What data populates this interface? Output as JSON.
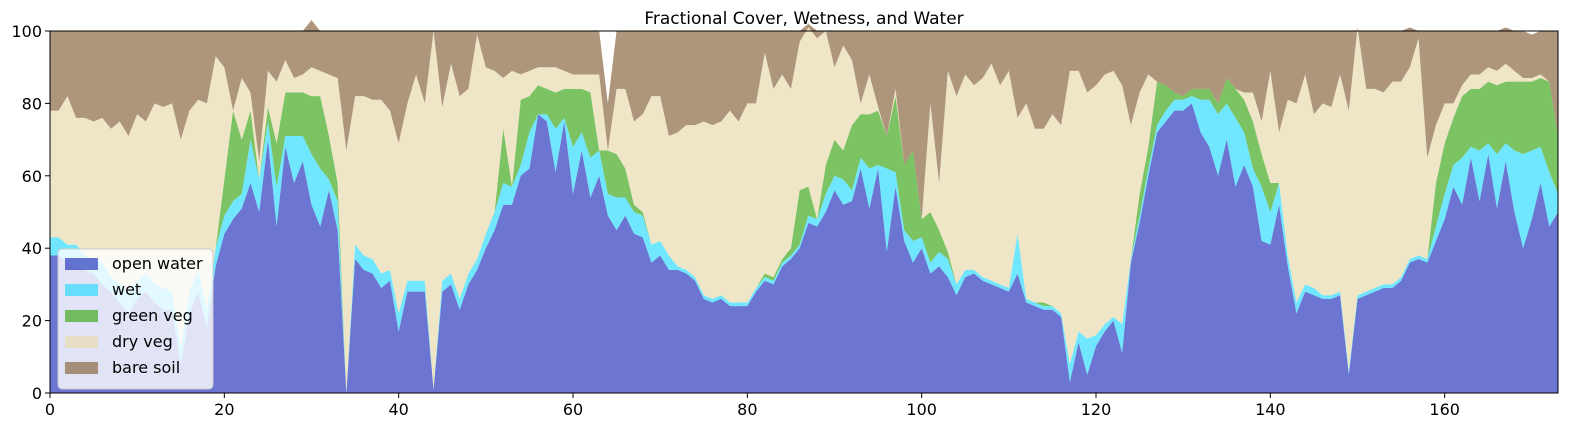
{
  "chart_data": {
    "type": "area",
    "stacked": true,
    "title": "Fractional Cover, Wetness, and Water",
    "xlabel": "",
    "ylabel": "",
    "xlim": [
      0,
      173
    ],
    "ylim": [
      0,
      100
    ],
    "xticks": [
      0,
      20,
      40,
      60,
      80,
      100,
      120,
      140,
      160
    ],
    "yticks": [
      0,
      20,
      40,
      60,
      80,
      100
    ],
    "grid": false,
    "legend_position": "lower-left",
    "x": [
      0,
      1,
      2,
      3,
      4,
      5,
      6,
      7,
      8,
      9,
      10,
      11,
      12,
      13,
      14,
      15,
      16,
      17,
      18,
      19,
      20,
      21,
      22,
      23,
      24,
      25,
      26,
      27,
      28,
      29,
      30,
      31,
      32,
      33,
      34,
      35,
      36,
      37,
      38,
      39,
      40,
      41,
      42,
      43,
      44,
      45,
      46,
      47,
      48,
      49,
      50,
      51,
      52,
      53,
      54,
      55,
      56,
      57,
      58,
      59,
      60,
      61,
      62,
      63,
      64,
      65,
      66,
      67,
      68,
      69,
      70,
      71,
      72,
      73,
      74,
      75,
      76,
      77,
      78,
      79,
      80,
      81,
      82,
      83,
      84,
      85,
      86,
      87,
      88,
      89,
      90,
      91,
      92,
      93,
      94,
      95,
      96,
      97,
      98,
      99,
      100,
      101,
      102,
      103,
      104,
      105,
      106,
      107,
      108,
      109,
      110,
      111,
      112,
      113,
      114,
      115,
      116,
      117,
      118,
      119,
      120,
      121,
      122,
      123,
      124,
      125,
      126,
      127,
      128,
      129,
      130,
      131,
      132,
      133,
      134,
      135,
      136,
      137,
      138,
      139,
      140,
      141,
      142,
      143,
      144,
      145,
      146,
      147,
      148,
      149,
      150,
      151,
      152,
      153,
      154,
      155,
      156,
      157,
      158,
      159,
      160,
      161,
      162,
      163,
      164,
      165,
      166,
      167,
      168,
      169,
      170,
      171,
      172,
      173
    ],
    "series": [
      {
        "name": "open water",
        "color": "#2e3bbd",
        "values": [
          38,
          38,
          36,
          35,
          34,
          33,
          30,
          28,
          25,
          22,
          26,
          28,
          25,
          23,
          23,
          8,
          22,
          28,
          18,
          35,
          44,
          48,
          51,
          58,
          50,
          70,
          46,
          68,
          58,
          64,
          52,
          46,
          56,
          45,
          0,
          37,
          34,
          33,
          29,
          31,
          17,
          28,
          28,
          28,
          1,
          28,
          30,
          23,
          30,
          34,
          40,
          45,
          52,
          52,
          60,
          62,
          77,
          75,
          61,
          75,
          55,
          67,
          54,
          60,
          49,
          45,
          49,
          44,
          43,
          36,
          38,
          34,
          34,
          33,
          31,
          26,
          25,
          26,
          24,
          24,
          24,
          28,
          31,
          30,
          35,
          37,
          40,
          47,
          46,
          50,
          56,
          52,
          53,
          62,
          51,
          62,
          39,
          57,
          42,
          36,
          40,
          33,
          35,
          32,
          27,
          32,
          33,
          31,
          30,
          29,
          28,
          33,
          25,
          24,
          23,
          23,
          21,
          3,
          14,
          5,
          13,
          17,
          20,
          11,
          36,
          47,
          60,
          72,
          75,
          78,
          78,
          80,
          72,
          68,
          60,
          70,
          57,
          63,
          57,
          42,
          41,
          52,
          35,
          22,
          28,
          27,
          26,
          26,
          27,
          5,
          26,
          27,
          28,
          29,
          29,
          31,
          36,
          37,
          36,
          42,
          48,
          57,
          52,
          65,
          53,
          66,
          51,
          64,
          50,
          40,
          48,
          58,
          46,
          50
        ]
      },
      {
        "name": "wet",
        "color": "#33ddff",
        "values": [
          5,
          5,
          5,
          6,
          4,
          4,
          6,
          4,
          5,
          6,
          5,
          5,
          5,
          6,
          5,
          5,
          6,
          6,
          5,
          5,
          5,
          5,
          4,
          12,
          9,
          5,
          11,
          3,
          13,
          7,
          14,
          16,
          3,
          8,
          0,
          4,
          4,
          4,
          4,
          3,
          5,
          3,
          3,
          3,
          0,
          3,
          3,
          3,
          3,
          3,
          4,
          5,
          6,
          5,
          3,
          10,
          0,
          2,
          12,
          1,
          13,
          5,
          11,
          7,
          6,
          9,
          5,
          6,
          6,
          5,
          4,
          4,
          1,
          1,
          1,
          1,
          1,
          1,
          1,
          1,
          1,
          1,
          1,
          1,
          1,
          1,
          1,
          2,
          2,
          5,
          4,
          7,
          3,
          3,
          11,
          1,
          23,
          4,
          3,
          6,
          3,
          3,
          4,
          5,
          3,
          2,
          1,
          1,
          1,
          1,
          1,
          11,
          1,
          1,
          1,
          1,
          1,
          5,
          3,
          10,
          3,
          2,
          1,
          8,
          1,
          2,
          2,
          2,
          3,
          3,
          3,
          2,
          9,
          13,
          17,
          10,
          19,
          9,
          5,
          15,
          9,
          6,
          3,
          3,
          2,
          2,
          1,
          1,
          1,
          1,
          1,
          1,
          1,
          1,
          1,
          1,
          1,
          1,
          1,
          4,
          7,
          6,
          13,
          3,
          14,
          3,
          15,
          5,
          17,
          26,
          19,
          10,
          15,
          5
        ]
      },
      {
        "name": "green veg",
        "color": "#44aa22",
        "values": [
          0,
          0,
          0,
          0,
          0,
          0,
          0,
          0,
          0,
          0,
          0,
          0,
          0,
          0,
          0,
          0,
          0,
          0,
          0,
          0,
          10,
          25,
          15,
          8,
          0,
          4,
          12,
          12,
          12,
          12,
          16,
          20,
          12,
          5,
          0,
          0,
          0,
          0,
          0,
          0,
          0,
          0,
          0,
          0,
          0,
          0,
          0,
          0,
          0,
          0,
          0,
          0,
          15,
          0,
          18,
          10,
          8,
          7,
          10,
          8,
          16,
          12,
          18,
          0,
          12,
          12,
          8,
          2,
          1,
          0,
          0,
          0,
          0,
          0,
          0,
          0,
          0,
          0,
          0,
          0,
          0,
          0,
          1,
          1,
          1,
          2,
          15,
          8,
          0,
          8,
          10,
          8,
          18,
          12,
          15,
          15,
          9,
          21,
          18,
          25,
          5,
          14,
          6,
          2,
          0,
          0,
          0,
          0,
          0,
          0,
          0,
          0,
          0,
          0,
          1,
          0,
          0,
          0,
          0,
          0,
          0,
          0,
          0,
          0,
          0,
          6,
          6,
          12,
          7,
          2,
          1,
          2,
          3,
          3,
          3,
          7,
          8,
          9,
          13,
          9,
          8,
          0,
          0,
          0,
          0,
          0,
          0,
          0,
          0,
          0,
          0,
          0,
          0,
          0,
          0,
          0,
          0,
          0,
          0,
          12,
          14,
          13,
          17,
          16,
          17,
          17,
          19,
          17,
          19,
          20,
          19,
          19,
          25,
          16
        ]
      },
      {
        "name": "dry veg",
        "color": "#e8dbb0",
        "values": [
          35,
          35,
          41,
          35,
          38,
          38,
          40,
          41,
          45,
          43,
          46,
          42,
          50,
          50,
          52,
          57,
          50,
          47,
          57,
          53,
          31,
          0,
          17,
          5,
          5,
          10,
          17,
          9,
          4,
          5,
          8,
          7,
          17,
          29,
          67,
          41,
          44,
          44,
          48,
          44,
          47,
          49,
          57,
          49,
          99,
          48,
          58,
          56,
          51,
          62,
          46,
          39,
          14,
          32,
          7,
          7,
          5,
          6,
          7,
          5,
          4,
          4,
          5,
          21,
          0,
          18,
          22,
          23,
          27,
          41,
          40,
          33,
          37,
          40,
          42,
          48,
          48,
          48,
          53,
          50,
          55,
          51,
          61,
          52,
          51,
          44,
          41,
          44,
          50,
          37,
          20,
          29,
          18,
          3,
          11,
          1,
          0,
          2,
          0,
          0,
          0,
          30,
          13,
          50,
          52,
          54,
          51,
          55,
          60,
          55,
          60,
          32,
          54,
          48,
          48,
          53,
          52,
          81,
          72,
          68,
          69,
          69,
          68,
          66,
          37,
          28,
          20,
          0,
          0,
          0,
          0,
          0,
          0,
          0,
          0,
          0,
          0,
          2,
          8,
          9,
          31,
          14,
          43,
          55,
          58,
          48,
          53,
          52,
          60,
          72,
          74,
          56,
          55,
          53,
          56,
          54,
          53,
          60,
          28,
          16,
          11,
          4,
          3,
          4,
          4,
          4,
          4,
          5,
          3,
          1,
          1,
          1,
          0,
          0
        ]
      },
      {
        "name": "bare soil",
        "color": "#8b6a44",
        "values": [
          22,
          22,
          18,
          24,
          24,
          25,
          24,
          27,
          25,
          29,
          23,
          25,
          20,
          21,
          20,
          30,
          22,
          19,
          20,
          7,
          10,
          22,
          13,
          17,
          36,
          11,
          14,
          8,
          13,
          12,
          13,
          11,
          12,
          13,
          33,
          18,
          18,
          19,
          19,
          22,
          31,
          20,
          12,
          20,
          0,
          21,
          9,
          18,
          16,
          1,
          10,
          11,
          13,
          11,
          12,
          11,
          10,
          10,
          10,
          11,
          12,
          12,
          12,
          12,
          13,
          16,
          16,
          25,
          23,
          18,
          18,
          29,
          28,
          26,
          26,
          25,
          26,
          25,
          22,
          25,
          20,
          20,
          6,
          16,
          12,
          16,
          3,
          1,
          2,
          0,
          10,
          4,
          8,
          20,
          12,
          21,
          29,
          16,
          37,
          33,
          52,
          20,
          42,
          11,
          18,
          12,
          15,
          13,
          9,
          15,
          11,
          24,
          20,
          27,
          27,
          23,
          26,
          11,
          11,
          17,
          15,
          12,
          11,
          15,
          26,
          17,
          12,
          14,
          15,
          17,
          18,
          16,
          16,
          16,
          20,
          13,
          16,
          17,
          17,
          25,
          11,
          28,
          19,
          20,
          12,
          23,
          20,
          21,
          12,
          22,
          -1,
          16,
          16,
          17,
          14,
          14,
          11,
          2,
          35,
          26,
          20,
          20,
          15,
          12,
          12,
          10,
          11,
          10,
          11,
          13,
          12,
          12,
          14,
          29
        ]
      }
    ]
  }
}
